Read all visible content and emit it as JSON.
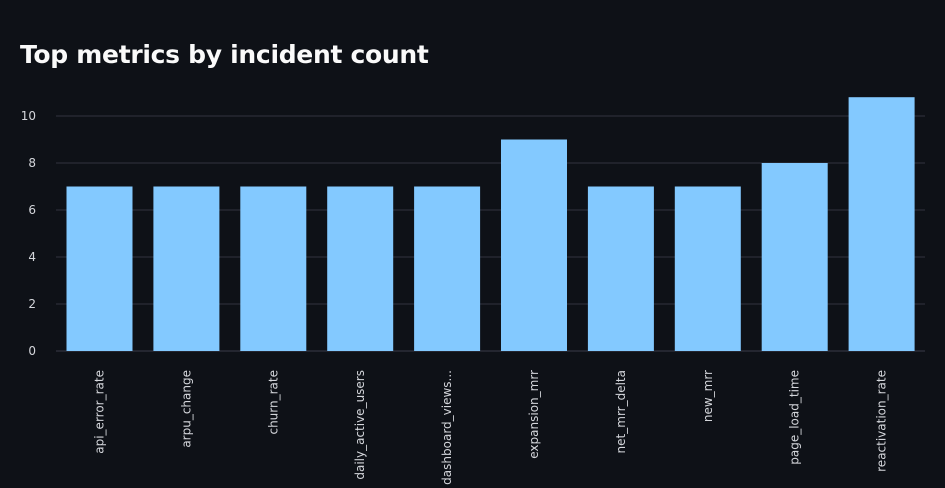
{
  "chart_data": {
    "type": "bar",
    "title": "Top metrics by incident count",
    "categories": [
      "api_error_rate",
      "arpu_change",
      "churn_rate",
      "daily_active_users",
      "dashboard_views...",
      "expansion_mrr",
      "net_mrr_delta",
      "new_mrr",
      "page_load_time",
      "reactivation_rate"
    ],
    "values": [
      7,
      7,
      7,
      7,
      7,
      9,
      7,
      7,
      8,
      10.8
    ],
    "yticks": [
      "0",
      "2",
      "4",
      "6",
      "8",
      "10"
    ],
    "ylim": [
      0,
      10.8
    ],
    "grid": true,
    "xlabel": "",
    "ylabel": "",
    "colors": {
      "bar": "#83c9ff",
      "grid": "#31333f",
      "background": "#0e1117",
      "text": "#fafafa"
    }
  }
}
